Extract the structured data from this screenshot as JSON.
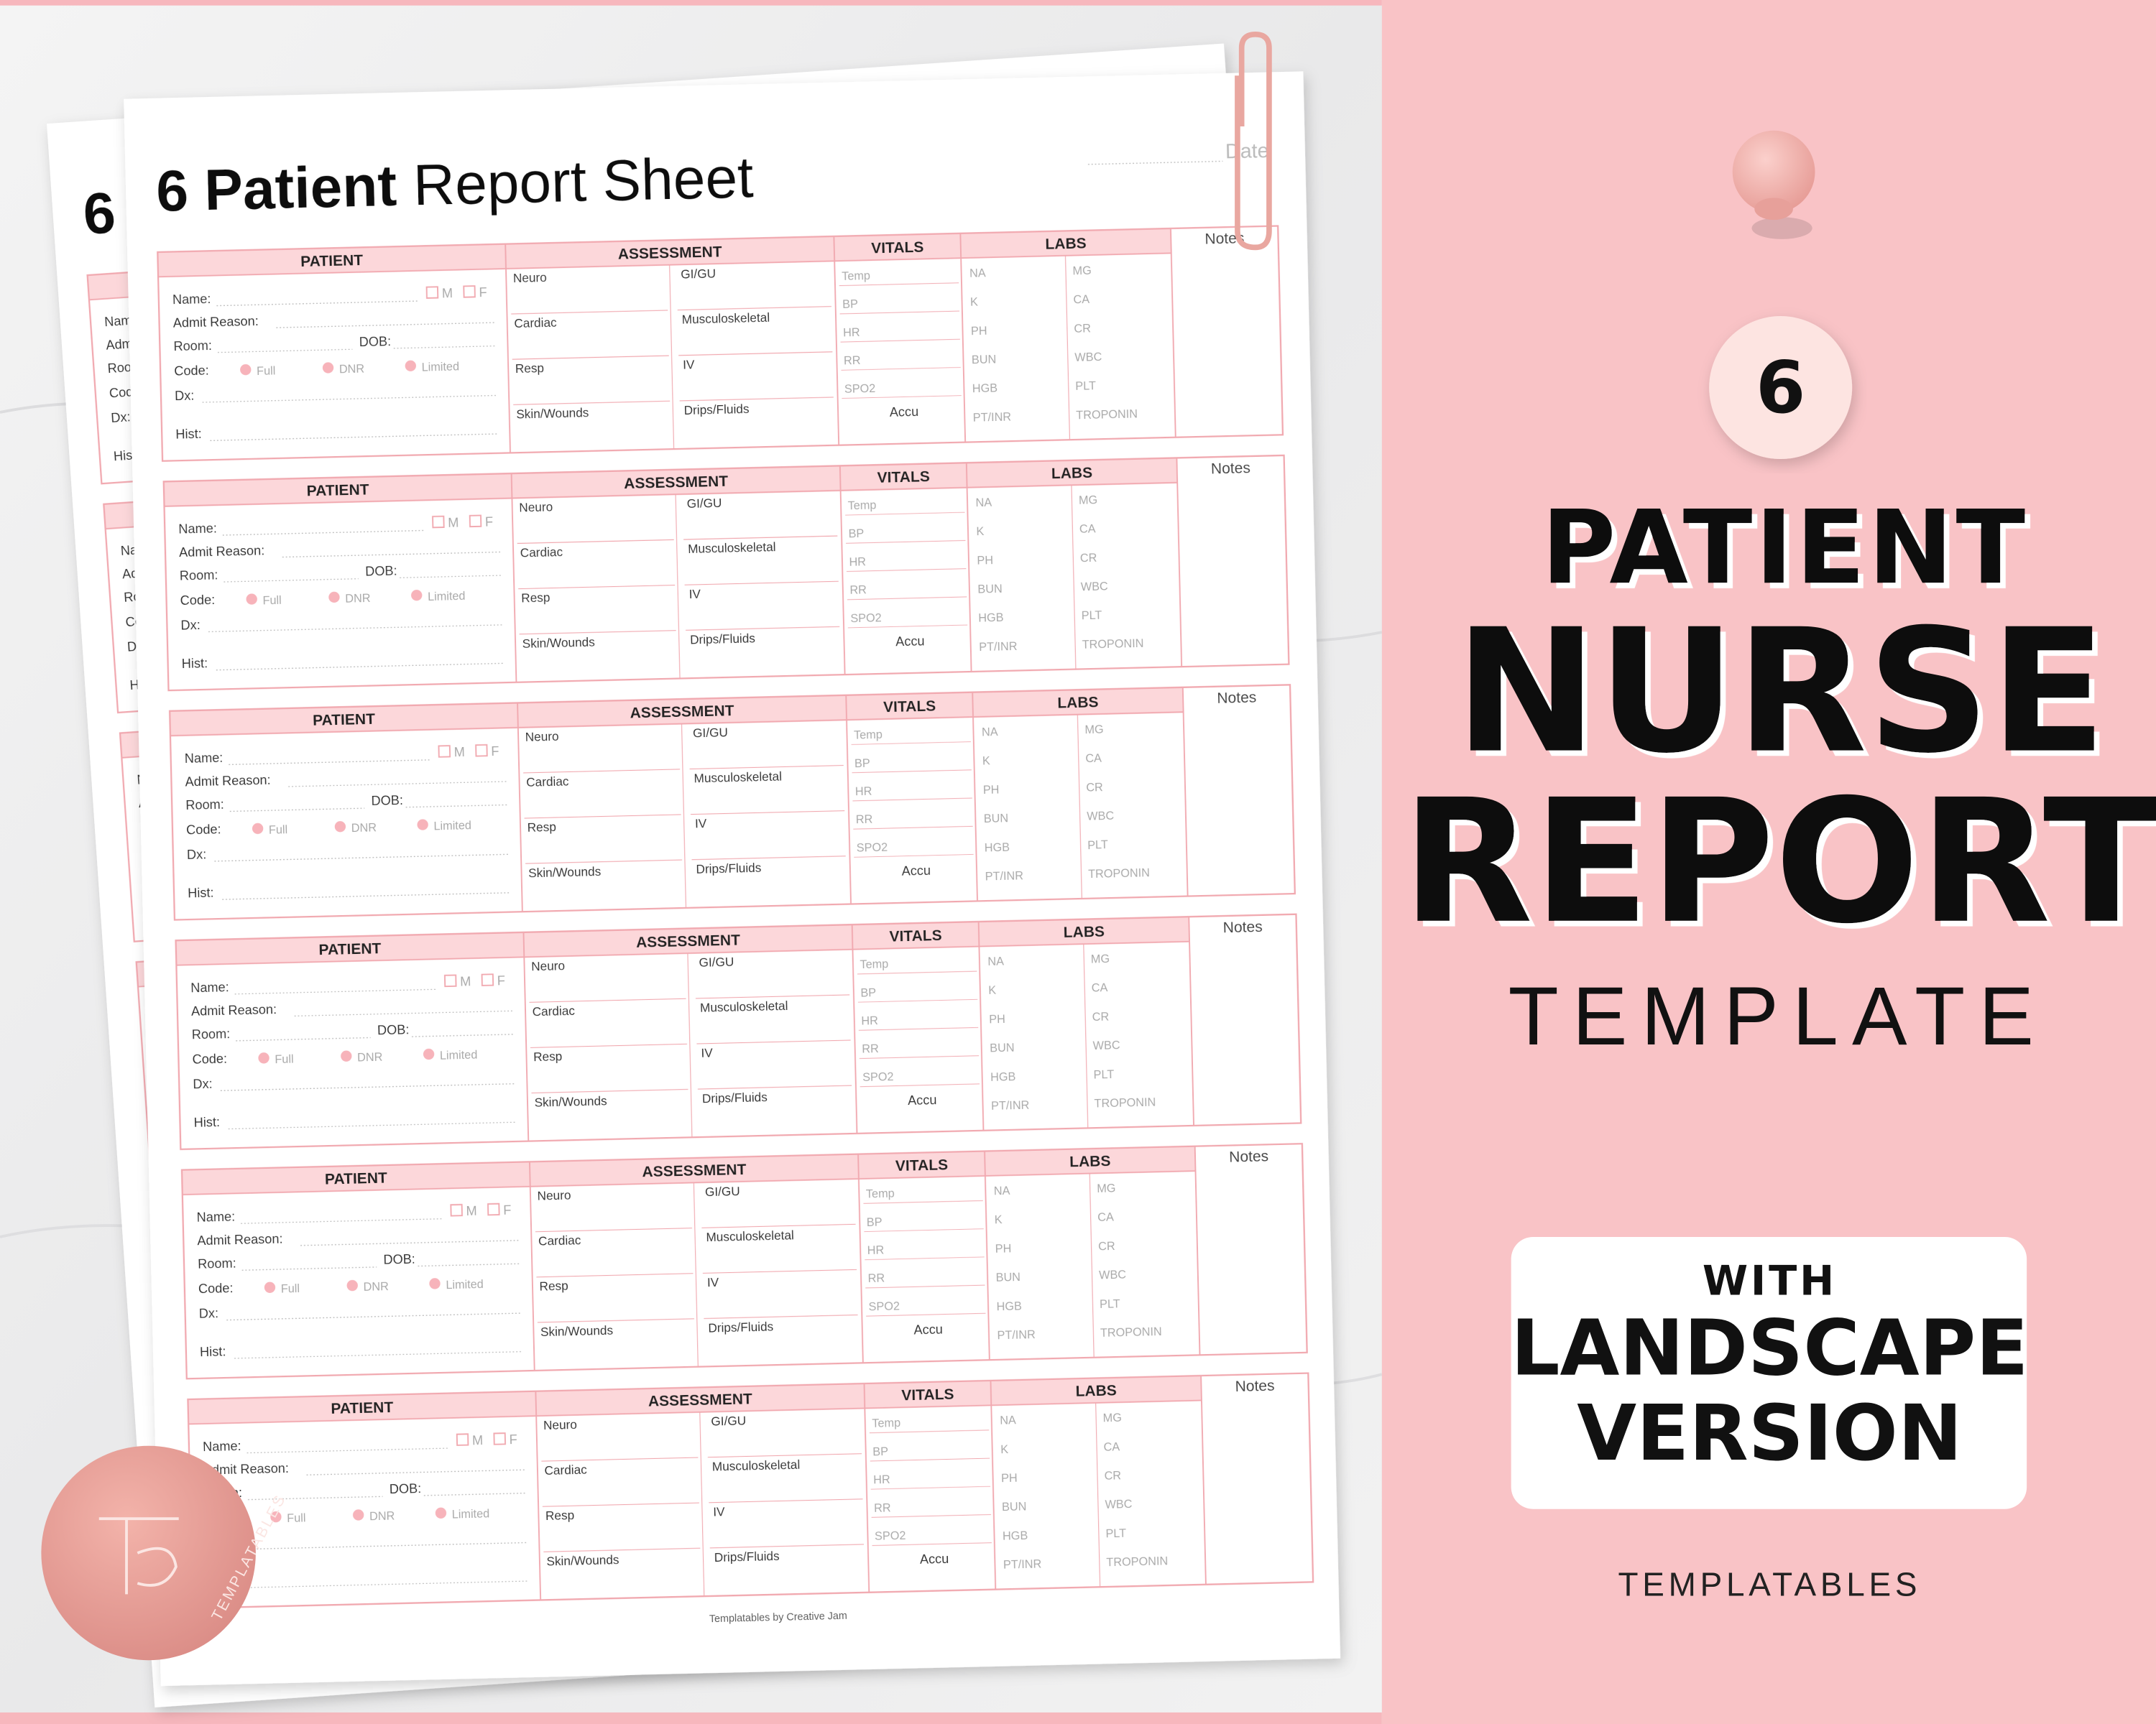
{
  "sheet": {
    "title_bold": "6 Patient",
    "title_light": "Report Sheet",
    "date_label": "Date",
    "block": {
      "patient_header": "PATIENT",
      "assessment_header": "ASSESSMENT",
      "vitals_header": "VITALS",
      "labs_header": "LABS",
      "notes_label": "Notes",
      "patient_fields": [
        "Name:",
        "Admit Reason:",
        "Room:",
        "Code:",
        "Dx:",
        "Hist:"
      ],
      "dob": "DOB:",
      "sex": [
        "M",
        "F"
      ],
      "code_options": [
        "Full",
        "DNR",
        "Limited"
      ],
      "assessment_fields": [
        "Neuro",
        "GI/GU",
        "Cardiac",
        "Musculoskeletal",
        "Resp",
        "IV",
        "Skin/Wounds",
        "Drips/Fluids"
      ],
      "vitals": [
        "Temp",
        "BP",
        "HR",
        "RR",
        "SPO2"
      ],
      "vitals_last": "Accu",
      "labs_left": [
        "NA",
        "K",
        "PH",
        "BUN",
        "HGB",
        "PT/INR"
      ],
      "labs_right": [
        "MG",
        "CA",
        "CR",
        "WBC",
        "PLT",
        "TROPONIN"
      ]
    },
    "footer": "Templatables by Creative Jam"
  },
  "badge": "6",
  "headline": {
    "line1": "PATIENT",
    "line2": "NURSE",
    "line3": "REPORT",
    "line4": "TEMPLATE"
  },
  "callout": {
    "line1": "WITH",
    "line2": "LANDSCAPE",
    "line3": "VERSION"
  },
  "brand": "TEMPLATABLES"
}
